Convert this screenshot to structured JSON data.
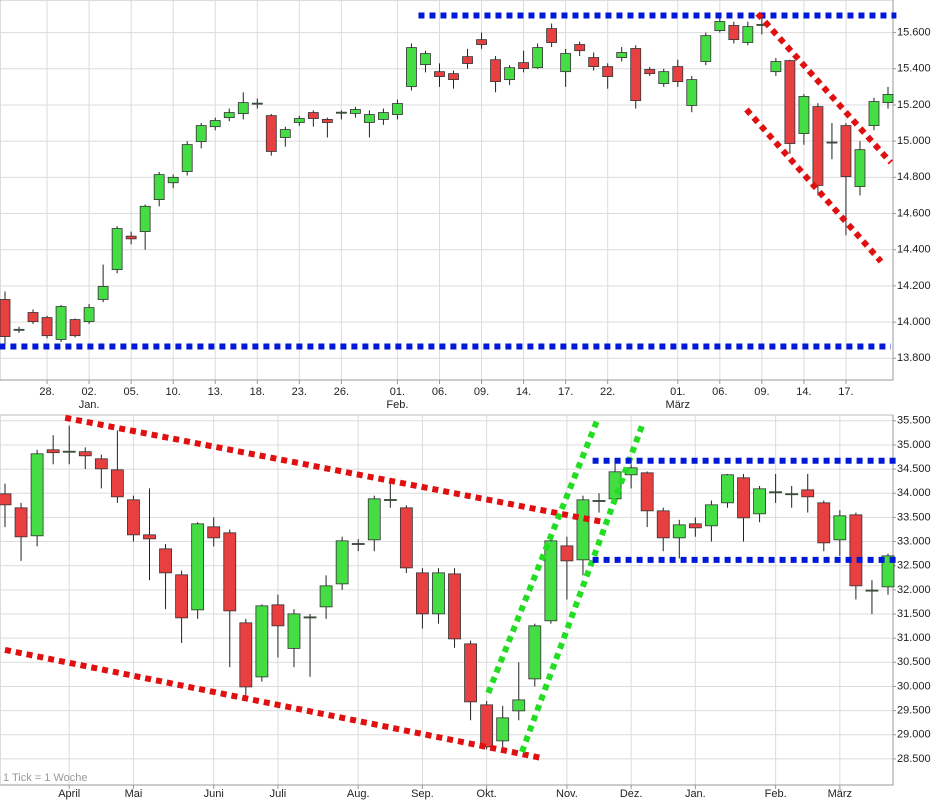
{
  "chart_data": [
    {
      "type": "candlestick",
      "up_color": "#44dd44",
      "down_color": "#e84040",
      "grid": true,
      "ylim": [
        13680,
        15780
      ],
      "yticks": [
        {
          "value": 13800,
          "label": "13.800"
        },
        {
          "value": 14000,
          "label": "14.000"
        },
        {
          "value": 14200,
          "label": "14.200"
        },
        {
          "value": 14400,
          "label": "14.400"
        },
        {
          "value": 14600,
          "label": "14.600"
        },
        {
          "value": 14800,
          "label": "14.800"
        },
        {
          "value": 15000,
          "label": "15.000"
        },
        {
          "value": 15200,
          "label": "15.200"
        },
        {
          "value": 15400,
          "label": "15.400"
        },
        {
          "value": 15600,
          "label": "15.600"
        }
      ],
      "xticks": [
        {
          "value": 3,
          "label": "28."
        },
        {
          "value": 6,
          "label": "02."
        },
        {
          "value": 9,
          "label": "05."
        },
        {
          "value": 12,
          "label": "10."
        },
        {
          "value": 15,
          "label": "13."
        },
        {
          "value": 18,
          "label": "18."
        },
        {
          "value": 21,
          "label": "23."
        },
        {
          "value": 24,
          "label": "26."
        },
        {
          "value": 28,
          "label": "01."
        },
        {
          "value": 31,
          "label": "06."
        },
        {
          "value": 34,
          "label": "09."
        },
        {
          "value": 37,
          "label": "14."
        },
        {
          "value": 40,
          "label": "17."
        },
        {
          "value": 43,
          "label": "22."
        },
        {
          "value": 48,
          "label": "01."
        },
        {
          "value": 51,
          "label": "06."
        },
        {
          "value": 54,
          "label": "09."
        },
        {
          "value": 57,
          "label": "14."
        },
        {
          "value": 60,
          "label": "17."
        }
      ],
      "xticks_secondary": [
        {
          "value": 6,
          "label": "Jan."
        },
        {
          "value": 28,
          "label": "Feb."
        },
        {
          "value": 48,
          "label": "März"
        }
      ],
      "open": [
        14125,
        13955,
        14053,
        14025,
        13904,
        14014,
        14003,
        14125,
        14290,
        14475,
        14500,
        14677,
        14770,
        14832,
        14998,
        15080,
        15130,
        15152,
        15205,
        15141,
        15020,
        15103,
        15158,
        15120,
        15155,
        15153,
        15103,
        15120,
        15147,
        15302,
        15423,
        15384,
        15373,
        15467,
        15561,
        15450,
        15340,
        15434,
        15406,
        15622,
        15384,
        15534,
        15462,
        15412,
        15462,
        15512,
        15396,
        15318,
        15412,
        15197,
        15440,
        15611,
        15639,
        15545,
        15640,
        15384,
        15445,
        15042,
        15191,
        14990,
        15086,
        14749,
        15086,
        15213
      ],
      "high": [
        14169,
        13975,
        14070,
        14035,
        14095,
        14020,
        14100,
        14318,
        14530,
        14500,
        14650,
        14830,
        14815,
        15000,
        15100,
        15130,
        15180,
        15270,
        15235,
        15150,
        15080,
        15140,
        15170,
        15130,
        15170,
        15190,
        15170,
        15180,
        15230,
        15540,
        15500,
        15430,
        15390,
        15510,
        15600,
        15470,
        15420,
        15500,
        15540,
        15650,
        15510,
        15550,
        15490,
        15430,
        15520,
        15530,
        15410,
        15400,
        15450,
        15360,
        15600,
        15680,
        15660,
        15660,
        15700,
        15460,
        15450,
        15260,
        15210,
        15100,
        15100,
        15000,
        15240,
        15300
      ],
      "low": [
        13876,
        13940,
        13990,
        13910,
        13890,
        13915,
        13990,
        14110,
        14270,
        14430,
        14400,
        14640,
        14740,
        14810,
        14960,
        15060,
        15110,
        15120,
        15180,
        14920,
        14970,
        15085,
        15080,
        15020,
        15120,
        15130,
        15020,
        15090,
        15120,
        15280,
        15380,
        15300,
        15290,
        15400,
        15510,
        15270,
        15310,
        15380,
        15400,
        15520,
        15300,
        15470,
        15390,
        15290,
        15440,
        15180,
        15360,
        15300,
        15300,
        15160,
        15420,
        15600,
        15540,
        15530,
        15590,
        15360,
        14930,
        14980,
        14700,
        14900,
        14480,
        14700,
        15060,
        15180
      ],
      "close": [
        13920,
        13960,
        14003,
        13925,
        14086,
        13925,
        14080,
        14197,
        14517,
        14460,
        14640,
        14815,
        14800,
        14981,
        15086,
        15114,
        15158,
        15213,
        15210,
        14943,
        15064,
        15125,
        15125,
        15103,
        15160,
        15175,
        15147,
        15158,
        15208,
        15517,
        15484,
        15357,
        15340,
        15429,
        15534,
        15329,
        15406,
        15401,
        15517,
        15545,
        15484,
        15500,
        15412,
        15357,
        15490,
        15224,
        15373,
        15384,
        15329,
        15340,
        15583,
        15661,
        15561,
        15633,
        15645,
        15440,
        14987,
        15247,
        14755,
        14995,
        14804,
        14953,
        15219,
        15258
      ],
      "lines": [
        {
          "color": "#0018d8",
          "x": [
            29.5,
            63.6
          ],
          "y": [
            15694,
            15694
          ]
        },
        {
          "color": "#0018d8",
          "x": [
            -0.4,
            63.2
          ],
          "y": [
            13865,
            13865
          ]
        },
        {
          "color": "#e01010",
          "x": [
            53.7,
            63.2
          ],
          "y": [
            15705,
            14882
          ]
        },
        {
          "color": "#e01010",
          "x": [
            52.9,
            62.5
          ],
          "y": [
            15175,
            14335
          ]
        }
      ]
    },
    {
      "type": "candlestick",
      "up_color": "#44dd44",
      "down_color": "#e84040",
      "grid": true,
      "ylim": [
        27960,
        35620
      ],
      "yticks": [
        {
          "value": 28500,
          "label": "28.500"
        },
        {
          "value": 29000,
          "label": "29.000"
        },
        {
          "value": 29500,
          "label": "29.500"
        },
        {
          "value": 30000,
          "label": "30.000"
        },
        {
          "value": 30500,
          "label": "30.500"
        },
        {
          "value": 31000,
          "label": "31.000"
        },
        {
          "value": 31500,
          "label": "31.500"
        },
        {
          "value": 32000,
          "label": "32.000"
        },
        {
          "value": 32500,
          "label": "32.500"
        },
        {
          "value": 33000,
          "label": "33.000"
        },
        {
          "value": 33500,
          "label": "33.500"
        },
        {
          "value": 34000,
          "label": "34.000"
        },
        {
          "value": 34500,
          "label": "34.500"
        },
        {
          "value": 35000,
          "label": "35.000"
        },
        {
          "value": 35500,
          "label": "35.500"
        }
      ],
      "xticks": [
        {
          "value": 4,
          "label": "April"
        },
        {
          "value": 8,
          "label": "Mai"
        },
        {
          "value": 13,
          "label": "Juni"
        },
        {
          "value": 17,
          "label": "Juli"
        },
        {
          "value": 22,
          "label": "Aug."
        },
        {
          "value": 26,
          "label": "Sep."
        },
        {
          "value": 30,
          "label": "Okt."
        },
        {
          "value": 35,
          "label": "Nov."
        },
        {
          "value": 39,
          "label": "Dez."
        },
        {
          "value": 43,
          "label": "Jan."
        },
        {
          "value": 48,
          "label": "Feb."
        },
        {
          "value": 52,
          "label": "März"
        }
      ],
      "note": "1 Tick = 1 Woche",
      "open": [
        33988,
        33698,
        33119,
        34900,
        34860,
        34860,
        34713,
        34485,
        33864,
        33139,
        32849,
        32311,
        31586,
        33305,
        33181,
        31317,
        30198,
        31690,
        30788,
        31420,
        31648,
        32124,
        32940,
        33036,
        33850,
        33698,
        32352,
        31503,
        32331,
        30882,
        29619,
        28873,
        29495,
        30157,
        31359,
        32911,
        32621,
        33830,
        33884,
        34382,
        34423,
        33636,
        33077,
        33367,
        33326,
        33802,
        34320,
        33574,
        34020,
        33985,
        34071,
        33802,
        33036,
        33553,
        31980,
        32062
      ],
      "high": [
        34200,
        33800,
        34900,
        35200,
        35400,
        34950,
        34800,
        35300,
        33950,
        34100,
        32950,
        32400,
        33400,
        33500,
        33250,
        31400,
        31700,
        31900,
        31600,
        31500,
        32300,
        33100,
        33050,
        33950,
        34200,
        33750,
        32450,
        32450,
        32450,
        30950,
        29700,
        29600,
        30500,
        31300,
        33050,
        33100,
        33950,
        34000,
        34700,
        34600,
        34450,
        33700,
        33450,
        33500,
        33850,
        34400,
        34400,
        34150,
        34400,
        34150,
        34400,
        33850,
        33650,
        33600,
        32200,
        32750
      ],
      "low": [
        33300,
        32600,
        32900,
        34600,
        34600,
        34500,
        34100,
        33800,
        33000,
        32200,
        31600,
        30900,
        31400,
        32900,
        30400,
        29700,
        30100,
        30600,
        30400,
        30200,
        31400,
        32000,
        32800,
        32800,
        33700,
        32350,
        31200,
        31300,
        30800,
        29300,
        28700,
        28700,
        29300,
        30000,
        31300,
        31800,
        32300,
        33600,
        33800,
        34100,
        33300,
        32800,
        32650,
        33100,
        33000,
        33700,
        33000,
        33400,
        33800,
        33700,
        33600,
        32800,
        32700,
        31800,
        31500,
        31900
      ],
      "close": [
        33760,
        33098,
        34817,
        34840,
        34870,
        34775,
        34506,
        33926,
        33139,
        33056,
        32352,
        31420,
        33367,
        33077,
        31565,
        29991,
        31669,
        31255,
        31503,
        31440,
        32083,
        33015,
        32960,
        33884,
        33870,
        32455,
        31503,
        32352,
        30985,
        29681,
        28749,
        29350,
        29722,
        31255,
        33015,
        32600,
        33864,
        33850,
        34444,
        34527,
        33636,
        33077,
        33346,
        33284,
        33760,
        34382,
        33491,
        34092,
        34030,
        33990,
        33926,
        32973,
        33533,
        32083,
        31995,
        32704
      ],
      "lines": [
        {
          "color": "#e01010",
          "x": [
            3.75,
            37.2
          ],
          "y": [
            35562,
            33408
          ]
        },
        {
          "color": "#e01010",
          "x": [
            0,
            33.4
          ],
          "y": [
            30757,
            28521
          ]
        },
        {
          "color": "#22dd22",
          "x": [
            30.1,
            36.9
          ],
          "y": [
            29867,
            35521
          ]
        },
        {
          "color": "#22dd22",
          "x": [
            32.2,
            39.7
          ],
          "y": [
            28645,
            35417
          ]
        },
        {
          "color": "#0018d8",
          "x": [
            36.6,
            55.5
          ],
          "y": [
            34672,
            34672
          ]
        },
        {
          "color": "#0018d8",
          "x": [
            36.6,
            55.5
          ],
          "y": [
            32621,
            32621
          ]
        }
      ]
    }
  ]
}
